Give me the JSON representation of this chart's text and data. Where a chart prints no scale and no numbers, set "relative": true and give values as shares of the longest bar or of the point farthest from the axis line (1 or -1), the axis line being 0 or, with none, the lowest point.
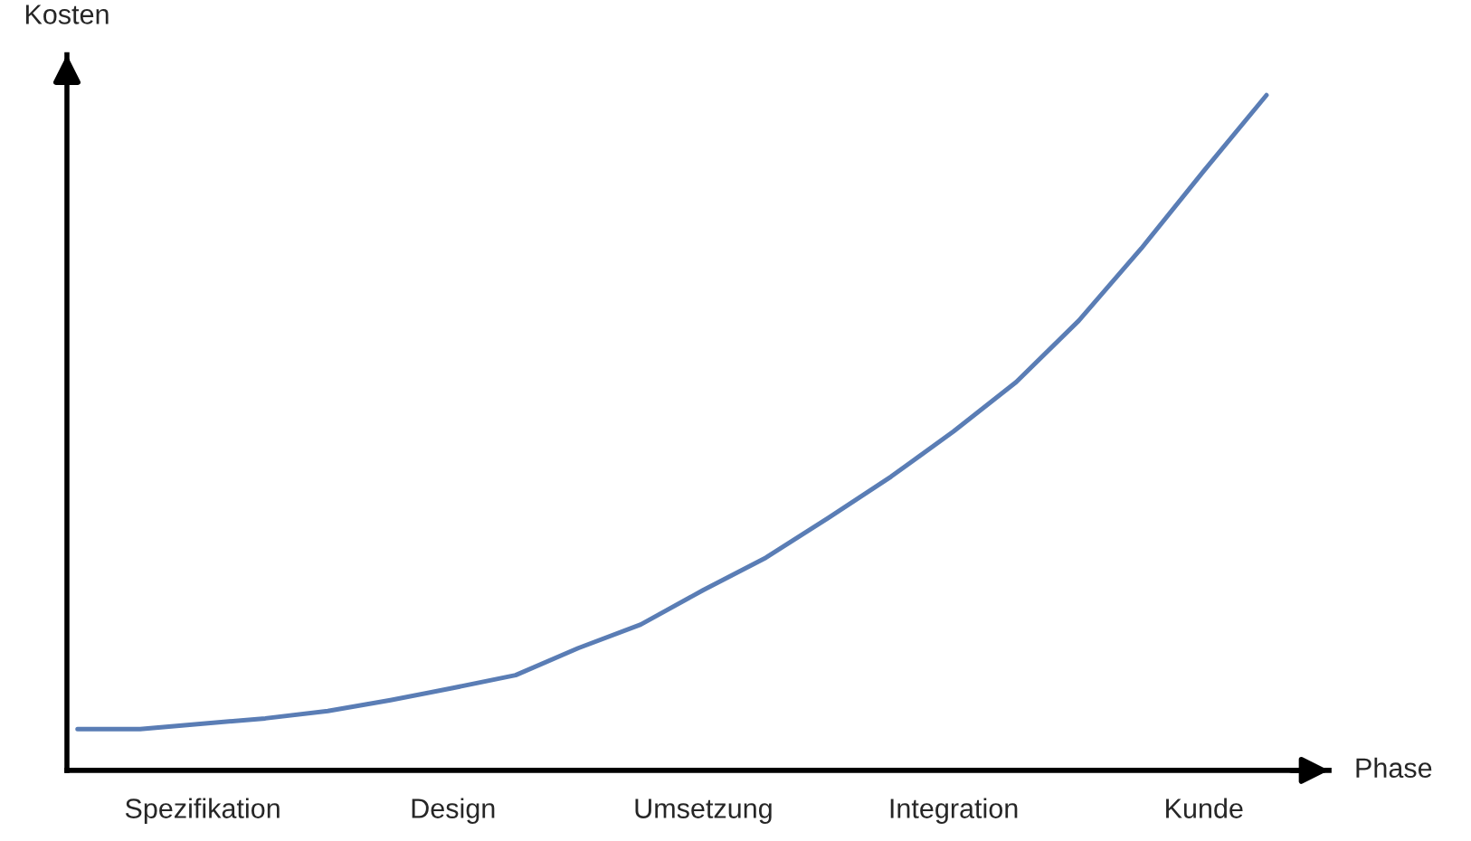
{
  "chart_data": {
    "type": "line",
    "xlabel": "Phase",
    "ylabel": "Kosten",
    "relative": true,
    "tick_labels": "x",
    "categories": [
      null,
      null,
      "Spezifikation",
      null,
      null,
      null,
      "Design",
      null,
      null,
      null,
      "Umsetzung",
      null,
      null,
      null,
      "Integration",
      null,
      null,
      null,
      "Kunde",
      null
    ],
    "series": [
      {
        "color": "#5a7db5",
        "values": [
          0.061,
          0.061,
          0.069,
          0.077,
          0.088,
          0.104,
          0.122,
          0.141,
          0.181,
          0.216,
          0.267,
          0.315,
          0.374,
          0.435,
          0.502,
          0.575,
          0.666,
          0.773,
          0.888,
          1
        ]
      }
    ]
  }
}
